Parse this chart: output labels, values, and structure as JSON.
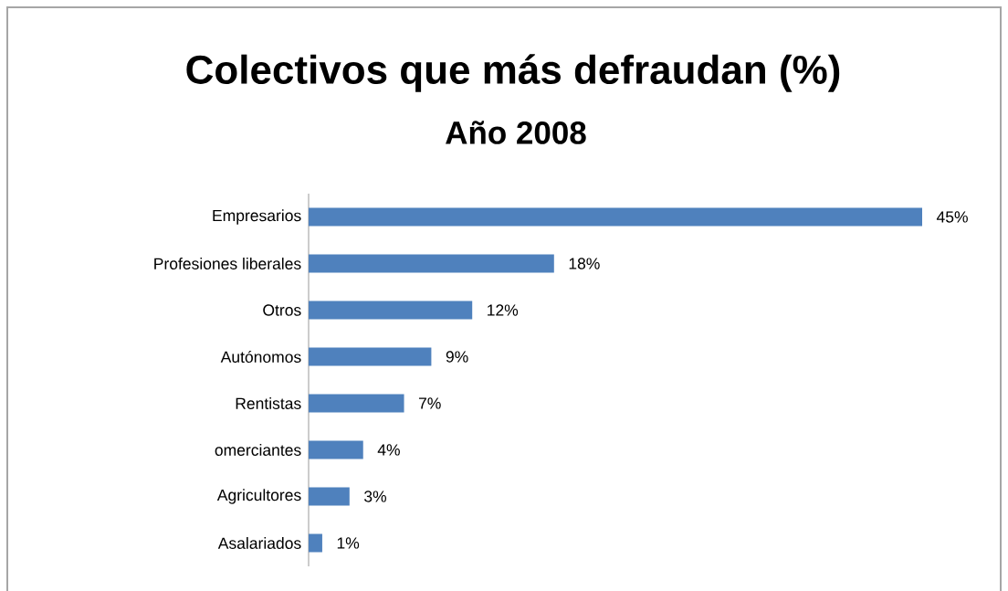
{
  "chart_data": {
    "type": "bar",
    "orientation": "horizontal",
    "title": "Colectivos que más defraudan (%)",
    "subtitle": "Año 2008",
    "categories": [
      "Empresarios",
      "Profesiones liberales",
      "Otros",
      "Autónomos",
      "Rentistas",
      "omerciantes",
      "Agricultores",
      "Asalariados"
    ],
    "values": [
      45,
      18,
      12,
      9,
      7,
      4,
      3,
      1
    ],
    "value_labels": [
      "45%",
      "18%",
      "12%",
      "9%",
      "7%",
      "4%",
      "3%",
      "1%"
    ],
    "color": "#4f81bd"
  }
}
